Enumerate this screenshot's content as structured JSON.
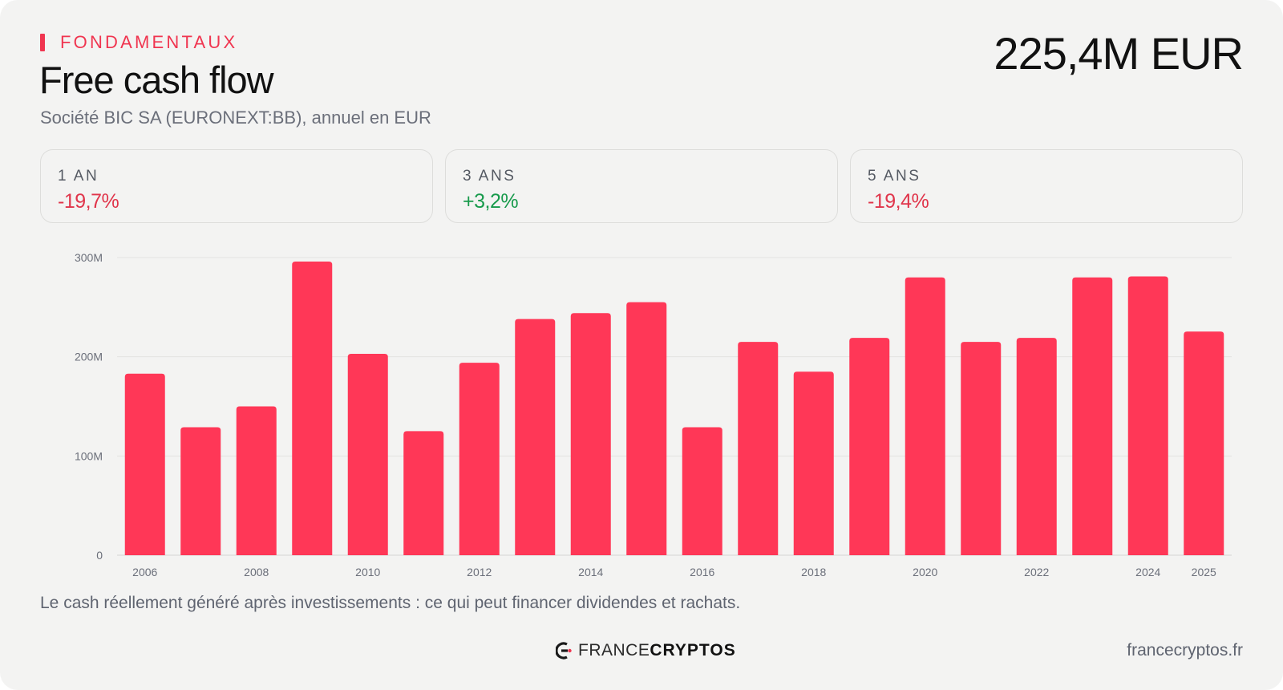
{
  "header": {
    "eyebrow": "FONDAMENTAUX",
    "title": "Free cash flow",
    "subtitle": "Société BIC SA (EURONEXT:BB), annuel en EUR",
    "headline_value": "225,4M EUR"
  },
  "stats": [
    {
      "label": "1 AN",
      "value": "-19,7%",
      "trend": "negative"
    },
    {
      "label": "3 ANS",
      "value": "+3,2%",
      "trend": "positive"
    },
    {
      "label": "5 ANS",
      "value": "-19,4%",
      "trend": "negative"
    }
  ],
  "colors": {
    "accent": "#f03550",
    "bar": "#ff3757",
    "negative": "#e0354b",
    "positive": "#179a4b",
    "background": "#f3f3f2"
  },
  "chart_data": {
    "type": "bar",
    "categories": [
      "2006",
      "2007",
      "2008",
      "2009",
      "2010",
      "2011",
      "2012",
      "2013",
      "2014",
      "2015",
      "2016",
      "2017",
      "2018",
      "2019",
      "2020",
      "2021",
      "2022",
      "2023",
      "2024",
      "2025"
    ],
    "values": [
      183,
      129,
      150,
      296,
      203,
      125,
      194,
      238,
      244,
      255,
      129,
      215,
      185,
      219,
      280,
      215,
      219,
      280,
      281,
      225.4
    ],
    "value_unit": "M EUR",
    "x_tick_labels": [
      "2006",
      "2008",
      "2010",
      "2012",
      "2014",
      "2016",
      "2018",
      "2020",
      "2022",
      "2024",
      "2025"
    ],
    "y_ticks": [
      {
        "value": 0,
        "label": "0"
      },
      {
        "value": 100,
        "label": "100M"
      },
      {
        "value": 200,
        "label": "200M"
      },
      {
        "value": 300,
        "label": "300M"
      }
    ],
    "ylim": [
      0,
      300
    ],
    "grid": true,
    "legend": "none"
  },
  "footnote": "Le cash réellement généré après investissements : ce qui peut financer dividendes et rachats.",
  "brand": {
    "light": "FRANCE",
    "bold": "CRYPTOS",
    "logo_icon": "france-cryptos-logo-icon"
  },
  "site": "francecryptos.fr"
}
